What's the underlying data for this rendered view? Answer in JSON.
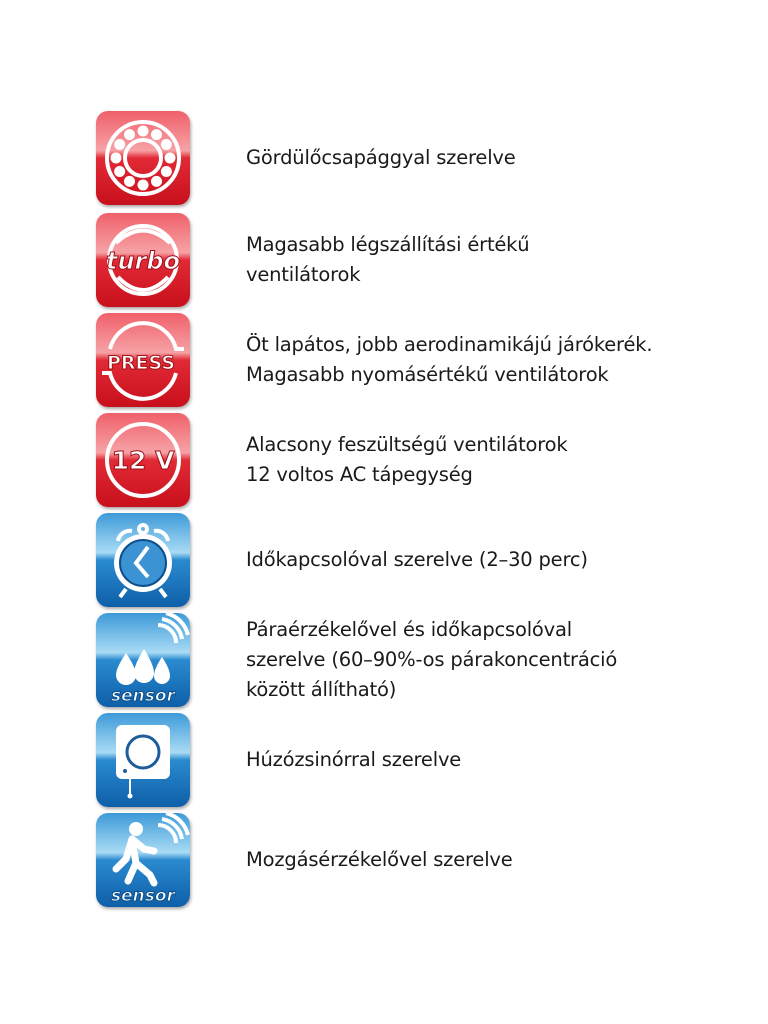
{
  "features": [
    {
      "icon": "ball-bearing-icon",
      "theme": "red",
      "lines": [
        "Gördülőcsapággyal szerelve"
      ]
    },
    {
      "icon": "turbo-icon",
      "theme": "red",
      "icon_label": "turbo",
      "lines": [
        "Magasabb légszállítási értékű",
        "ventilátorok"
      ]
    },
    {
      "icon": "press-icon",
      "theme": "red",
      "icon_label": "PRESS",
      "lines": [
        "Öt lapátos, jobb aerodinamikájú járókerék.",
        "Magasabb nyomásértékű ventilátorok"
      ]
    },
    {
      "icon": "12v-icon",
      "theme": "red",
      "icon_label": "12 V",
      "lines": [
        "Alacsony feszültségű ventilátorok",
        "12 voltos AC tápegység"
      ]
    },
    {
      "icon": "alarm-clock-icon",
      "theme": "blue",
      "lines": [
        "Időkapcsolóval szerelve (2–30 perc)"
      ]
    },
    {
      "icon": "humidity-sensor-icon",
      "theme": "blue",
      "icon_label": "sensor",
      "lines": [
        "Páraérzékelővel és időkapcsolóval",
        "szerelve (60–90%-os párakoncentráció",
        "között állítható)"
      ]
    },
    {
      "icon": "pull-cord-icon",
      "theme": "blue",
      "lines": [
        "Húzózsinórral szerelve"
      ]
    },
    {
      "icon": "motion-sensor-icon",
      "theme": "blue",
      "icon_label": "sensor",
      "lines": [
        "Mozgásérzékelővel szerelve"
      ]
    }
  ],
  "colors": {
    "red": "#e3222e",
    "red_light": "#f37a80",
    "blue": "#1a7cc4",
    "blue_light": "#7cc3ec"
  }
}
